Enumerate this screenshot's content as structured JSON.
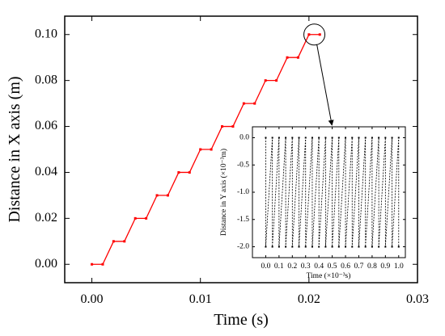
{
  "chart_data": [
    {
      "type": "line",
      "xlabel": "Time (s)",
      "ylabel": "Distance in  X axis (m)",
      "xlim": [
        -0.0025,
        0.03
      ],
      "ylim": [
        -0.008,
        0.108
      ],
      "xticks": [
        0.0,
        0.01,
        0.02,
        0.03
      ],
      "xtick_labels": [
        "0.00",
        "0.01",
        "0.02",
        "0.03"
      ],
      "yticks": [
        0.0,
        0.02,
        0.04,
        0.06,
        0.08,
        0.1
      ],
      "ytick_labels": [
        "0.00",
        "0.02",
        "0.04",
        "0.06",
        "0.08",
        "0.10"
      ],
      "grid": false,
      "legend": false,
      "series": [
        {
          "color": "#ff0000",
          "marker": "square",
          "x": [
            0.0,
            0.001,
            0.002,
            0.003,
            0.004,
            0.005,
            0.006,
            0.007,
            0.008,
            0.009,
            0.01,
            0.011,
            0.012,
            0.013,
            0.014,
            0.015,
            0.016,
            0.017,
            0.018,
            0.019,
            0.02,
            0.021
          ],
          "y": [
            0.0,
            0.0,
            0.01,
            0.01,
            0.02,
            0.02,
            0.03,
            0.03,
            0.04,
            0.04,
            0.05,
            0.05,
            0.06,
            0.06,
            0.07,
            0.07,
            0.08,
            0.08,
            0.09,
            0.09,
            0.1,
            0.1
          ]
        }
      ],
      "annotations": [
        "circle around the final step near (0.0205, 0.10) with an arrow pointing to the inset chart"
      ]
    },
    {
      "type": "line",
      "role": "inset",
      "xlabel": "Time (×10⁻³s)",
      "ylabel": "Distance in  Y axis (×10⁻³m)",
      "xlim": [
        -0.1,
        1.05
      ],
      "ylim": [
        -2.2,
        0.2
      ],
      "xticks": [
        0.0,
        0.1,
        0.2,
        0.3,
        0.4,
        0.5,
        0.6,
        0.7,
        0.8,
        0.9,
        1.0
      ],
      "xtick_labels": [
        "0.0",
        "0.1",
        "0.2",
        "0.3",
        "0.4",
        "0.5",
        "0.6",
        "0.7",
        "0.8",
        "0.9",
        "1.0"
      ],
      "yticks": [
        0.0,
        -0.5,
        -1.0,
        -1.5,
        -2.0
      ],
      "ytick_labels": [
        "0.0",
        "-0.5",
        "-1.0",
        "-1.5",
        "-2.0"
      ],
      "grid": false,
      "legend": false,
      "series": [
        {
          "color": "#000000",
          "line_style": "dashed",
          "marker": "square",
          "x": [
            0.0,
            0.0,
            0.05,
            0.05,
            0.1,
            0.1,
            0.15,
            0.15,
            0.2,
            0.2,
            0.25,
            0.25,
            0.3,
            0.3,
            0.35,
            0.35,
            0.4,
            0.4,
            0.45,
            0.45,
            0.5,
            0.5,
            0.55,
            0.55,
            0.6,
            0.6,
            0.65,
            0.65,
            0.7,
            0.7,
            0.75,
            0.75,
            0.8,
            0.8,
            0.85,
            0.85,
            0.9,
            0.9,
            0.95,
            0.95,
            1.0,
            1.0
          ],
          "y": [
            0.0,
            -2.0,
            0.0,
            -2.0,
            0.0,
            -2.0,
            0.0,
            -2.0,
            0.0,
            -2.0,
            0.0,
            -2.0,
            0.0,
            -2.0,
            0.0,
            -2.0,
            0.0,
            -2.0,
            0.0,
            -2.0,
            0.0,
            -2.0,
            0.0,
            -2.0,
            0.0,
            -2.0,
            0.0,
            -2.0,
            0.0,
            -2.0,
            0.0,
            -2.0,
            0.0,
            -2.0,
            0.0,
            -2.0,
            0.0,
            -2.0,
            0.0,
            -2.0,
            0.0,
            -2.0
          ]
        }
      ]
    }
  ]
}
